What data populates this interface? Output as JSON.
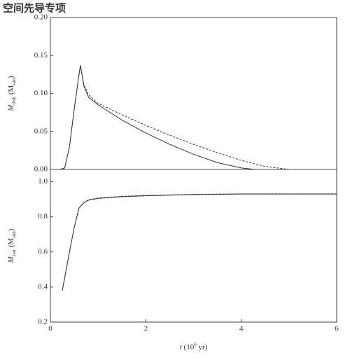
{
  "watermark": "空间先导专项",
  "chart_data": [
    {
      "type": "line",
      "ylabel": [
        {
          "text": "M"
        },
        {
          "text": "disk",
          "sub": true
        },
        {
          "text": " (M"
        },
        {
          "text": "sun",
          "sub": true
        },
        {
          "text": ")"
        }
      ],
      "xlim": [
        0,
        6
      ],
      "ylim": [
        0,
        0.2
      ],
      "yticks": [
        {
          "value": 0,
          "label": "0.00"
        },
        {
          "value": 0.05,
          "label": "0.05"
        },
        {
          "value": 0.1,
          "label": "0.10"
        },
        {
          "value": 0.15,
          "label": "0.15"
        },
        {
          "value": 0.2,
          "label": "0.20"
        }
      ],
      "x": [
        0.2,
        0.3,
        0.4,
        0.5,
        0.6,
        0.63,
        0.7,
        0.8,
        1.0,
        1.5,
        2,
        2.5,
        3,
        3.5,
        4,
        4.3,
        4.5,
        5,
        6
      ],
      "series": [
        {
          "color": "#333333",
          "dashed": false,
          "values": [
            0,
            0.002,
            0.03,
            0.08,
            0.125,
            0.137,
            0.11,
            0.095,
            0.085,
            0.065,
            0.048,
            0.033,
            0.02,
            0.009,
            0.002,
            0,
            0,
            0,
            0
          ]
        },
        {
          "color": "#333333",
          "dashed": true,
          "values": [
            0,
            0.002,
            0.03,
            0.08,
            0.125,
            0.137,
            0.112,
            0.098,
            0.087,
            0.072,
            0.058,
            0.045,
            0.033,
            0.022,
            0.012,
            0.007,
            0.004,
            0,
            0
          ]
        }
      ]
    },
    {
      "type": "line",
      "ylabel": [
        {
          "text": "M"
        },
        {
          "text": "star",
          "sub": true
        },
        {
          "text": " (M"
        },
        {
          "text": "sun",
          "sub": true
        },
        {
          "text": ")"
        }
      ],
      "xlabel": [
        {
          "text": "t",
          "italic": true
        },
        {
          "text": " (10"
        },
        {
          "text": "6",
          "sup": true
        },
        {
          "text": " yr)"
        }
      ],
      "xlim": [
        0,
        6
      ],
      "ylim": [
        0.2,
        1.07
      ],
      "xticks": [
        0,
        2,
        4,
        6
      ],
      "yticks": [
        0.2,
        0.4,
        0.6,
        0.8,
        {
          "value": 1.0,
          "label": "1.0"
        }
      ],
      "x": [
        0.25,
        0.4,
        0.5,
        0.6,
        0.7,
        0.8,
        1,
        1.5,
        2,
        3,
        4,
        5,
        6
      ],
      "series": [
        {
          "color": "#333333",
          "dashed": false,
          "values": [
            0.38,
            0.6,
            0.74,
            0.85,
            0.88,
            0.895,
            0.905,
            0.915,
            0.92,
            0.927,
            0.93,
            0.93,
            0.93
          ]
        },
        {
          "color": "#333333",
          "dashed": true,
          "values": [
            0.38,
            0.6,
            0.74,
            0.85,
            0.882,
            0.897,
            0.907,
            0.917,
            0.922,
            0.928,
            0.931,
            0.931,
            0.931
          ]
        }
      ]
    }
  ]
}
